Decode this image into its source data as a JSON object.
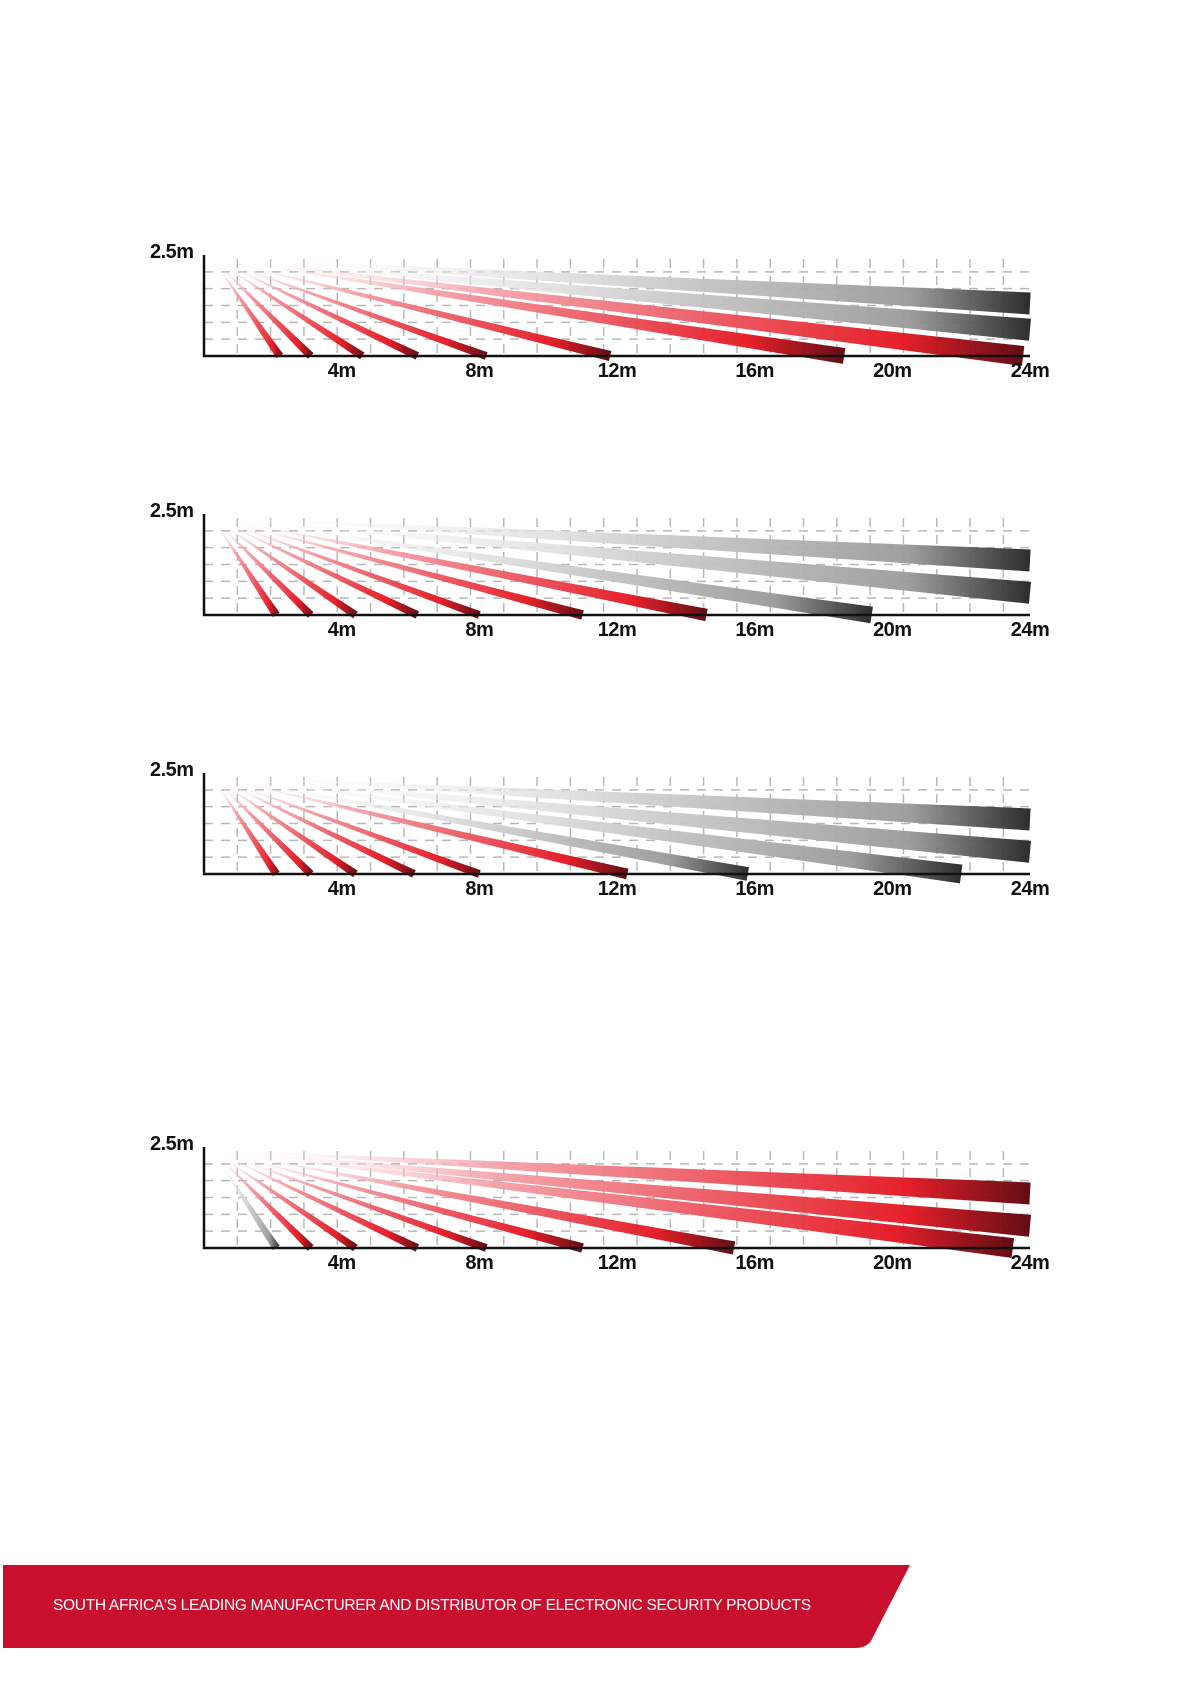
{
  "diagrams": [
    {
      "y_label": "2.5m",
      "x_labels": [
        "4m",
        "8m",
        "12m",
        "16m",
        "20m",
        "24m"
      ],
      "beams": [
        {
          "end": 2.2,
          "color": "red"
        },
        {
          "end": 3.1,
          "color": "red"
        },
        {
          "end": 4.6,
          "color": "red"
        },
        {
          "end": 6.2,
          "color": "red"
        },
        {
          "end": 8.2,
          "color": "red"
        },
        {
          "end": 11.8,
          "color": "red"
        },
        {
          "end": 18.6,
          "color": "red"
        },
        {
          "end": 23.8,
          "color": "red"
        },
        {
          "end": 24,
          "color": "gray",
          "height": 0.65
        },
        {
          "end": 24,
          "color": "gray",
          "height": 1.3
        }
      ]
    },
    {
      "y_label": "2.5m",
      "x_labels": [
        "4m",
        "8m",
        "12m",
        "16m",
        "20m",
        "24m"
      ],
      "beams": [
        {
          "end": 2.1,
          "color": "red"
        },
        {
          "end": 3.1,
          "color": "red"
        },
        {
          "end": 4.4,
          "color": "red"
        },
        {
          "end": 6.2,
          "color": "red"
        },
        {
          "end": 8.0,
          "color": "red"
        },
        {
          "end": 11.0,
          "color": "red"
        },
        {
          "end": 14.6,
          "color": "red"
        },
        {
          "end": 19.4,
          "color": "gray"
        },
        {
          "end": 24,
          "color": "gray",
          "height": 0.55
        },
        {
          "end": 24,
          "color": "gray",
          "height": 1.35
        }
      ]
    },
    {
      "y_label": "2.5m",
      "x_labels": [
        "4m",
        "8m",
        "12m",
        "16m",
        "20m",
        "24m"
      ],
      "beams": [
        {
          "end": 2.1,
          "color": "red"
        },
        {
          "end": 3.1,
          "color": "red"
        },
        {
          "end": 4.4,
          "color": "red"
        },
        {
          "end": 6.1,
          "color": "red"
        },
        {
          "end": 8.0,
          "color": "red"
        },
        {
          "end": 12.3,
          "color": "red"
        },
        {
          "end": 15.8,
          "color": "gray"
        },
        {
          "end": 22.0,
          "color": "gray"
        },
        {
          "end": 24,
          "color": "gray",
          "height": 0.55
        },
        {
          "end": 24,
          "color": "gray",
          "height": 1.35
        }
      ]
    },
    {
      "y_label": "2.5m",
      "x_labels": [
        "4m",
        "8m",
        "12m",
        "16m",
        "20m",
        "24m"
      ],
      "beams": [
        {
          "end": 2.1,
          "color": "gray"
        },
        {
          "end": 3.1,
          "color": "red"
        },
        {
          "end": 4.4,
          "color": "red"
        },
        {
          "end": 6.2,
          "color": "red"
        },
        {
          "end": 8.2,
          "color": "red"
        },
        {
          "end": 11.0,
          "color": "red"
        },
        {
          "end": 15.4,
          "color": "red"
        },
        {
          "end": 23.5,
          "color": "red"
        },
        {
          "end": 24,
          "color": "red",
          "height": 0.55
        },
        {
          "end": 24,
          "color": "red",
          "height": 1.35
        }
      ]
    }
  ],
  "footer": {
    "text": "SOUTH AFRICA'S LEADING MANUFACTURER AND DISTRIBUTOR OF ELECTRONIC SECURITY PRODUCTS",
    "color": "#c8102e"
  }
}
